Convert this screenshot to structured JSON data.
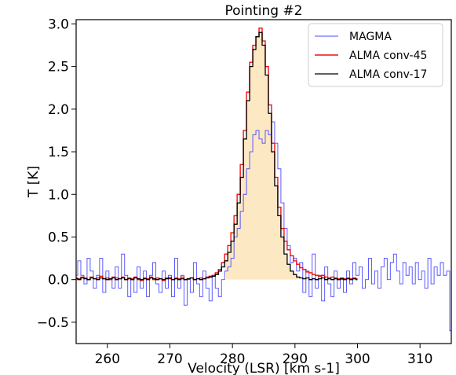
{
  "chart_data": {
    "type": "line",
    "title": "Pointing #2",
    "xlabel": "Velocity (LSR) [km s-1]",
    "ylabel": "T [K]",
    "xlim": [
      255,
      315
    ],
    "ylim": [
      -0.75,
      3.05
    ],
    "xticks": [
      260,
      270,
      280,
      290,
      300,
      310
    ],
    "xtick_labels": [
      "260",
      "270",
      "280",
      "290",
      "300",
      "310"
    ],
    "yticks": [
      -0.5,
      0.0,
      0.5,
      1.0,
      1.5,
      2.0,
      2.5,
      3.0
    ],
    "ytick_labels": [
      "−0.5",
      "0.0",
      "0.5",
      "1.0",
      "1.5",
      "2.0",
      "2.5",
      "3.0"
    ],
    "grid": false,
    "legend_position": "top-right",
    "fill": {
      "color": "#fde8c4",
      "under_series": "ALMA conv-17",
      "x_range": [
        279,
        290.5
      ]
    },
    "series": [
      {
        "name": "MAGMA",
        "color": "#4a4aff",
        "step": true,
        "x": [
          255.0,
          255.5,
          256.0,
          256.5,
          257.0,
          257.5,
          258.0,
          258.5,
          259.0,
          259.5,
          260.0,
          260.5,
          261.0,
          261.5,
          262.0,
          262.5,
          263.0,
          263.5,
          264.0,
          264.5,
          265.0,
          265.5,
          266.0,
          266.5,
          267.0,
          267.5,
          268.0,
          268.5,
          269.0,
          269.5,
          270.0,
          270.5,
          271.0,
          271.5,
          272.0,
          272.5,
          273.0,
          273.5,
          274.0,
          274.5,
          275.0,
          275.5,
          276.0,
          276.5,
          277.0,
          277.5,
          278.0,
          278.5,
          279.0,
          279.5,
          280.0,
          280.5,
          281.0,
          281.5,
          282.0,
          282.5,
          283.0,
          283.5,
          284.0,
          284.5,
          285.0,
          285.5,
          286.0,
          286.5,
          287.0,
          287.5,
          288.0,
          288.5,
          289.0,
          289.5,
          290.0,
          290.5,
          291.0,
          291.5,
          292.0,
          292.5,
          293.0,
          293.5,
          294.0,
          294.5,
          295.0,
          295.5,
          296.0,
          296.5,
          297.0,
          297.5,
          298.0,
          298.5,
          299.0,
          299.5,
          300.0,
          300.5,
          301.0,
          301.5,
          302.0,
          302.5,
          303.0,
          303.5,
          304.0,
          304.5,
          305.0,
          305.5,
          306.0,
          306.5,
          307.0,
          307.5,
          308.0,
          308.5,
          309.0,
          309.5,
          310.0,
          310.5,
          311.0,
          311.5,
          312.0,
          312.5,
          313.0,
          313.5,
          314.0,
          314.5,
          315.0
        ],
        "y": [
          0.05,
          0.22,
          0.05,
          -0.05,
          0.25,
          0.1,
          -0.1,
          0.05,
          0.25,
          -0.15,
          0.1,
          0.0,
          -0.1,
          0.15,
          -0.1,
          0.3,
          0.05,
          -0.2,
          0.0,
          -0.15,
          0.15,
          -0.1,
          0.1,
          -0.2,
          0.05,
          0.2,
          -0.05,
          -0.15,
          0.1,
          -0.1,
          0.05,
          -0.2,
          0.25,
          -0.1,
          0.05,
          -0.3,
          0.0,
          -0.15,
          0.2,
          -0.05,
          -0.2,
          0.1,
          -0.1,
          -0.25,
          0.05,
          -0.1,
          -0.2,
          0.0,
          0.1,
          0.15,
          0.25,
          0.5,
          0.6,
          0.8,
          1.0,
          1.3,
          1.5,
          1.7,
          1.75,
          1.65,
          1.6,
          1.75,
          1.7,
          1.85,
          1.6,
          1.3,
          0.9,
          0.6,
          0.4,
          0.2,
          0.25,
          0.1,
          0.2,
          -0.15,
          0.1,
          -0.2,
          0.3,
          -0.1,
          0.05,
          -0.25,
          0.15,
          -0.05,
          -0.2,
          0.1,
          -0.1,
          0.0,
          -0.15,
          0.1,
          -0.05,
          0.2,
          0.05,
          0.15,
          -0.1,
          0.0,
          0.25,
          -0.05,
          0.1,
          -0.1,
          0.15,
          0.25,
          0.0,
          0.2,
          0.3,
          0.1,
          -0.05,
          0.2,
          0.05,
          0.15,
          -0.05,
          0.2,
          0.0,
          0.1,
          -0.1,
          0.25,
          -0.05,
          0.15,
          0.05,
          0.2,
          0.05,
          0.1,
          -0.6
        ]
      },
      {
        "name": "ALMA conv-45",
        "color": "#ee1111",
        "step": true,
        "x": [
          255.0,
          255.5,
          256.0,
          256.5,
          257.0,
          257.5,
          258.0,
          258.5,
          259.0,
          259.5,
          260.0,
          260.5,
          261.0,
          261.5,
          262.0,
          262.5,
          263.0,
          263.5,
          264.0,
          264.5,
          265.0,
          265.5,
          266.0,
          266.5,
          267.0,
          267.5,
          268.0,
          268.5,
          269.0,
          269.5,
          270.0,
          270.5,
          271.0,
          271.5,
          272.0,
          272.5,
          273.0,
          273.5,
          274.0,
          274.5,
          275.0,
          275.5,
          276.0,
          276.5,
          277.0,
          277.5,
          278.0,
          278.5,
          279.0,
          279.5,
          280.0,
          280.5,
          281.0,
          281.5,
          282.0,
          282.5,
          283.0,
          283.5,
          284.0,
          284.5,
          285.0,
          285.5,
          286.0,
          286.5,
          287.0,
          287.5,
          288.0,
          288.5,
          289.0,
          289.5,
          290.0,
          290.5,
          291.0,
          291.5,
          292.0,
          292.5,
          293.0,
          293.5,
          294.0,
          294.5,
          295.0,
          295.5,
          296.0,
          296.5,
          297.0,
          297.5,
          298.0,
          298.5,
          299.0,
          299.5,
          300.0
        ],
        "y": [
          0.02,
          0.01,
          0.03,
          0.02,
          0.0,
          0.03,
          0.01,
          0.02,
          0.04,
          0.01,
          0.02,
          0.0,
          0.03,
          0.02,
          0.01,
          0.03,
          0.0,
          0.02,
          0.01,
          0.03,
          0.0,
          -0.01,
          0.02,
          0.01,
          0.03,
          0.0,
          0.02,
          0.01,
          -0.01,
          0.02,
          0.01,
          0.0,
          0.02,
          0.01,
          0.03,
          0.0,
          0.01,
          0.02,
          0.0,
          0.01,
          0.02,
          0.01,
          0.03,
          0.04,
          0.05,
          0.08,
          0.12,
          0.2,
          0.3,
          0.4,
          0.55,
          0.75,
          1.0,
          1.35,
          1.75,
          2.2,
          2.55,
          2.75,
          2.85,
          2.95,
          2.8,
          2.5,
          2.05,
          1.6,
          1.2,
          0.85,
          0.6,
          0.45,
          0.35,
          0.28,
          0.22,
          0.18,
          0.14,
          0.12,
          0.09,
          0.08,
          0.06,
          0.05,
          0.04,
          0.05,
          0.03,
          0.02,
          0.03,
          0.02,
          0.01,
          0.02,
          0.01,
          0.02,
          0.01,
          0.02,
          0.01
        ]
      },
      {
        "name": "ALMA conv-17",
        "color": "#000000",
        "step": true,
        "x": [
          255.0,
          255.5,
          256.0,
          256.5,
          257.0,
          257.5,
          258.0,
          258.5,
          259.0,
          259.5,
          260.0,
          260.5,
          261.0,
          261.5,
          262.0,
          262.5,
          263.0,
          263.5,
          264.0,
          264.5,
          265.0,
          265.5,
          266.0,
          266.5,
          267.0,
          267.5,
          268.0,
          268.5,
          269.0,
          269.5,
          270.0,
          270.5,
          271.0,
          271.5,
          272.0,
          272.5,
          273.0,
          273.5,
          274.0,
          274.5,
          275.0,
          275.5,
          276.0,
          276.5,
          277.0,
          277.5,
          278.0,
          278.5,
          279.0,
          279.5,
          280.0,
          280.5,
          281.0,
          281.5,
          282.0,
          282.5,
          283.0,
          283.5,
          284.0,
          284.5,
          285.0,
          285.5,
          286.0,
          286.5,
          287.0,
          287.5,
          288.0,
          288.5,
          289.0,
          289.5,
          290.0,
          290.5,
          291.0,
          291.5,
          292.0,
          292.5,
          293.0,
          293.5,
          294.0,
          294.5,
          295.0,
          295.5,
          296.0,
          296.5,
          297.0,
          297.5,
          298.0,
          298.5,
          299.0,
          299.5,
          300.0
        ],
        "y": [
          0.01,
          0.0,
          0.02,
          0.01,
          0.0,
          0.02,
          0.01,
          0.0,
          0.02,
          0.01,
          0.0,
          0.01,
          0.02,
          0.0,
          0.01,
          0.02,
          0.0,
          0.01,
          0.0,
          0.02,
          0.01,
          0.0,
          0.01,
          0.0,
          0.02,
          0.01,
          0.0,
          0.01,
          0.0,
          0.01,
          0.02,
          0.0,
          0.01,
          0.0,
          0.01,
          0.0,
          0.01,
          0.02,
          0.0,
          0.01,
          0.0,
          0.01,
          0.02,
          0.03,
          0.04,
          0.06,
          0.1,
          0.15,
          0.22,
          0.32,
          0.45,
          0.65,
          0.9,
          1.2,
          1.65,
          2.1,
          2.5,
          2.7,
          2.85,
          2.9,
          2.75,
          2.4,
          1.95,
          1.5,
          1.1,
          0.75,
          0.5,
          0.3,
          0.18,
          0.1,
          0.06,
          0.03,
          0.02,
          0.01,
          0.02,
          0.0,
          0.01,
          0.0,
          0.01,
          0.02,
          0.0,
          0.01,
          0.0,
          0.01,
          0.0,
          0.01,
          0.0,
          0.01,
          0.0,
          0.01,
          0.0
        ]
      }
    ]
  }
}
